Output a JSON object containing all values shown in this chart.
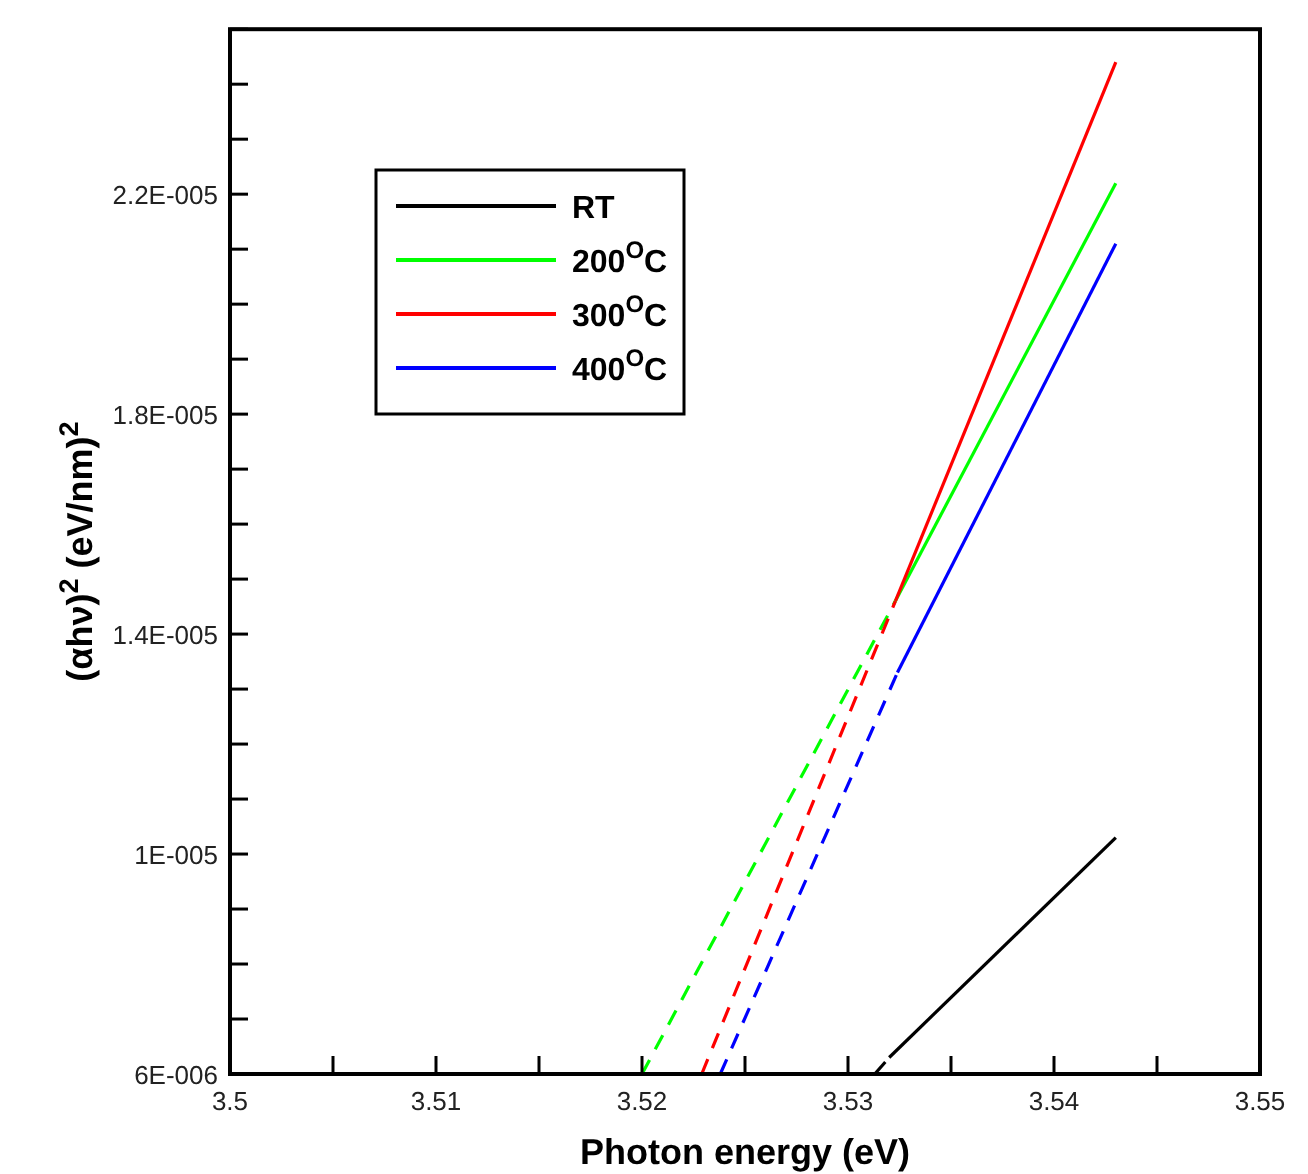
{
  "chart_data": {
    "type": "line",
    "xlabel": "Photon energy (eV)",
    "ylabel": "(αhν)$^{2}$ (eV/nm)$^{2}$",
    "xlim": [
      3.5,
      3.55
    ],
    "ylim": [
      6e-06,
      2.5e-05
    ],
    "xticks": [
      3.5,
      {
        "value": 3.505,
        "label": null
      },
      3.51,
      {
        "value": 3.515,
        "label": null
      },
      3.52,
      {
        "value": 3.525,
        "label": null
      },
      3.53,
      {
        "value": 3.535,
        "label": null
      },
      3.54,
      {
        "value": 3.545,
        "label": null
      },
      3.55
    ],
    "yticks": [
      {
        "value": 6e-06,
        "label": "6E-006"
      },
      {
        "value": 7e-06,
        "label": null
      },
      {
        "value": 8e-06,
        "label": null
      },
      {
        "value": 9e-06,
        "label": null
      },
      {
        "value": 1e-05,
        "label": "1E-005"
      },
      {
        "value": 1.1e-05,
        "label": null
      },
      {
        "value": 1.2e-05,
        "label": null
      },
      {
        "value": 1.3e-05,
        "label": null
      },
      {
        "value": 1.4e-05,
        "label": "1.4E-005"
      },
      {
        "value": 1.5e-05,
        "label": null
      },
      {
        "value": 1.6e-05,
        "label": null
      },
      {
        "value": 1.7e-05,
        "label": null
      },
      {
        "value": 1.8e-05,
        "label": "1.8E-005"
      },
      {
        "value": 1.9e-05,
        "label": null
      },
      {
        "value": 2e-05,
        "label": null
      },
      {
        "value": 2.1e-05,
        "label": null
      },
      {
        "value": 2.2e-05,
        "label": "2.2E-005"
      },
      {
        "value": 2.3e-05,
        "label": null
      },
      {
        "value": 2.4e-05,
        "label": null
      },
      {
        "value": 2.5e-05,
        "label": null
      }
    ],
    "grid": false,
    "legend": "top left",
    "marker": "none",
    "series": [
      {
        "name": "RT",
        "color": "#000000",
        "x": [
          3.532,
          3.543
        ],
        "values": [
          6.3e-06,
          1.03e-05
        ],
        "line_style": "solid"
      },
      {
        "name": "200$^{O}$C",
        "color": "#00ff00",
        "x": [
          3.5323,
          3.543
        ],
        "values": [
          1.46e-05,
          2.22e-05
        ],
        "line_style": "solid"
      },
      {
        "name": "300$^{O}$C",
        "color": "#ff0000",
        "x": [
          3.5323,
          3.543
        ],
        "values": [
          1.46e-05,
          2.44e-05
        ],
        "line_style": "solid"
      },
      {
        "name": "400$^{O}$C",
        "color": "#0000ff",
        "x": [
          3.5324,
          3.543
        ],
        "values": [
          1.33e-05,
          2.11e-05
        ],
        "line_style": "solid"
      },
      {
        "color": "#000000",
        "x": [
          3.5313,
          3.532
        ],
        "values": [
          6e-06,
          6.3e-06
        ],
        "line_style": "dashed"
      },
      {
        "color": "#00ff00",
        "x": [
          3.52,
          3.5323
        ],
        "values": [
          6e-06,
          1.46e-05
        ],
        "line_style": "dashed"
      },
      {
        "color": "#ff0000",
        "x": [
          3.5229,
          3.5323
        ],
        "values": [
          6e-06,
          1.46e-05
        ],
        "line_style": "dashed"
      },
      {
        "color": "#0000ff",
        "x": [
          3.5238,
          3.5324
        ],
        "values": [
          6e-06,
          1.33e-05
        ],
        "line_style": "dashed"
      }
    ]
  }
}
